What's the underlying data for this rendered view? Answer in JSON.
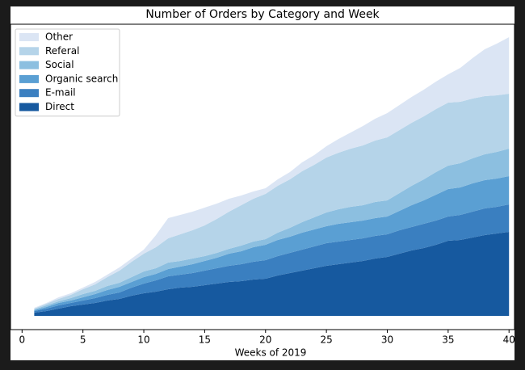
{
  "chart_data": {
    "type": "stacked-area",
    "title": "Number of Orders by Category and Week",
    "xlabel": "Weeks of 2019",
    "x": [
      1,
      2,
      3,
      4,
      5,
      6,
      7,
      8,
      9,
      10,
      11,
      12,
      13,
      14,
      15,
      16,
      17,
      18,
      19,
      20,
      21,
      22,
      23,
      24,
      25,
      26,
      27,
      28,
      29,
      30,
      31,
      32,
      33,
      34,
      35,
      36,
      37,
      38,
      39,
      40
    ],
    "series": [
      {
        "name": "Direct",
        "color": "#16599f",
        "values": [
          4,
          6,
          9,
          12,
          14,
          16,
          19,
          21,
          25,
          28,
          30,
          33,
          35,
          36,
          38,
          40,
          42,
          43,
          45,
          46,
          50,
          53,
          56,
          59,
          62,
          64,
          66,
          68,
          71,
          73,
          77,
          81,
          84,
          88,
          93,
          94,
          97,
          100,
          102,
          104
        ]
      },
      {
        "name": "E-mail",
        "color": "#3a7fc0",
        "values": [
          2,
          3,
          4,
          4,
          5,
          6,
          7,
          8,
          10,
          12,
          14,
          16,
          16,
          17,
          18,
          19,
          20,
          21,
          22,
          23,
          24,
          25,
          26,
          27,
          28,
          28,
          28,
          28,
          28,
          28,
          29,
          29,
          30,
          30,
          30,
          31,
          32,
          33,
          33,
          34
        ]
      },
      {
        "name": "Organic search",
        "color": "#5a9fd3",
        "values": [
          1,
          2,
          3,
          3,
          4,
          5,
          6,
          7,
          7,
          8,
          8,
          9,
          10,
          11,
          12,
          13,
          15,
          16,
          18,
          19,
          20,
          20,
          21,
          21,
          21,
          22,
          22,
          22,
          22,
          22,
          24,
          27,
          29,
          32,
          34,
          34,
          35,
          35,
          35,
          35
        ]
      },
      {
        "name": "Social",
        "color": "#8cbfe0",
        "values": [
          1,
          2,
          2,
          3,
          4,
          4,
          5,
          5,
          6,
          7,
          7,
          8,
          7,
          7,
          6,
          6,
          6,
          7,
          7,
          7,
          9,
          11,
          13,
          15,
          17,
          18,
          19,
          19,
          20,
          20,
          22,
          24,
          26,
          28,
          29,
          30,
          31,
          32,
          33,
          34
        ]
      },
      {
        "name": "Referal",
        "color": "#b5d4e9",
        "values": [
          1,
          2,
          3,
          4,
          6,
          8,
          11,
          15,
          19,
          22,
          26,
          30,
          33,
          35,
          38,
          42,
          46,
          50,
          53,
          56,
          58,
          60,
          63,
          65,
          68,
          70,
          72,
          74,
          76,
          78,
          78,
          78,
          78,
          78,
          78,
          76,
          74,
          72,
          70,
          68
        ]
      },
      {
        "name": "Other",
        "color": "#dbe5f4",
        "values": [
          1,
          1,
          2,
          2,
          2,
          3,
          3,
          4,
          4,
          5,
          15,
          25,
          24,
          23,
          22,
          19,
          16,
          12,
          9,
          7,
          8,
          9,
          11,
          12,
          14,
          17,
          20,
          24,
          27,
          30,
          31,
          32,
          33,
          34,
          35,
          42,
          50,
          58,
          64,
          70
        ]
      }
    ],
    "xlim": [
      -0.95,
      40.45
    ],
    "xticks": [
      0,
      5,
      10,
      15,
      20,
      25,
      30,
      35,
      40
    ],
    "ylim": [
      -17,
      361
    ],
    "legend": "upper left"
  }
}
